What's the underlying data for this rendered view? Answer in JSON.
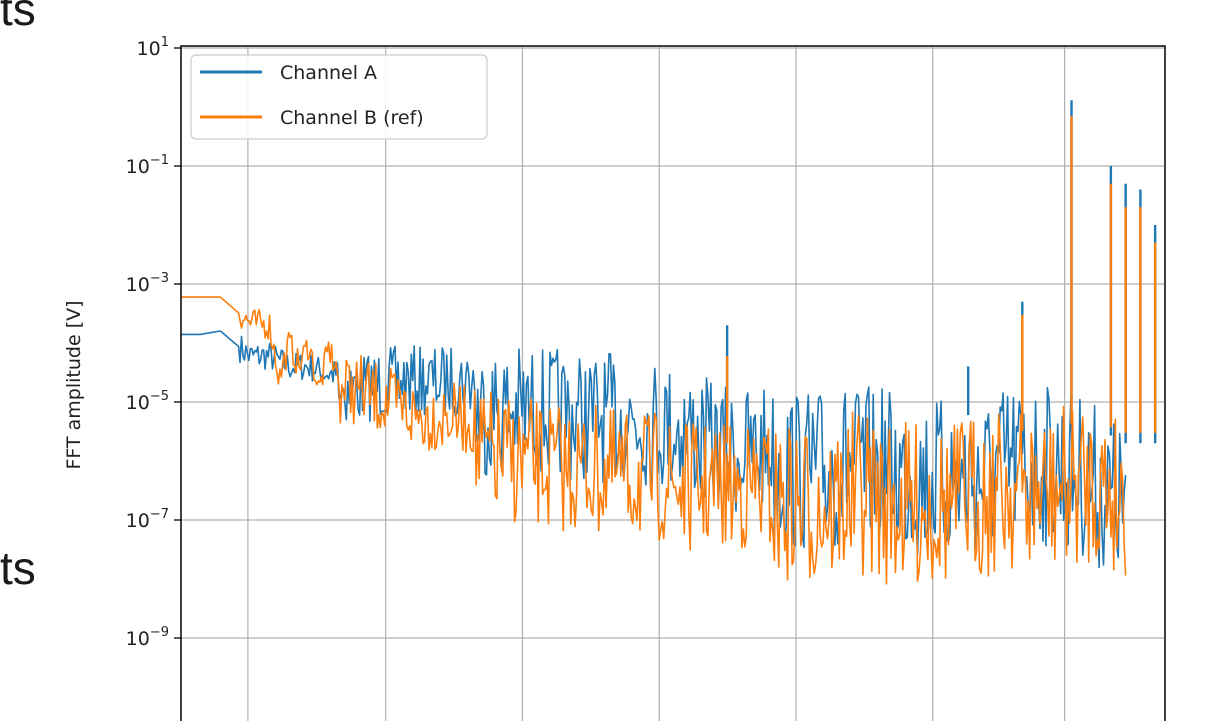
{
  "page": {
    "fragment_top": "ts",
    "fragment_mid": "ts"
  },
  "chart_data": {
    "type": "line",
    "title": "",
    "xlabel": "",
    "ylabel": "FFT amplitude [V]",
    "y_scale": "log",
    "ylim": [
      1e-10,
      10
    ],
    "yticks": [
      {
        "value": 10,
        "base": "10",
        "exp": "1"
      },
      {
        "value": 0.1,
        "base": "10",
        "exp": "−1"
      },
      {
        "value": 0.001,
        "base": "10",
        "exp": "−3"
      },
      {
        "value": 1e-05,
        "base": "10",
        "exp": "−5"
      },
      {
        "value": 1e-07,
        "base": "10",
        "exp": "−7"
      },
      {
        "value": 1e-09,
        "base": "10",
        "exp": "−9"
      }
    ],
    "grid": true,
    "legend": "top-left",
    "series": [
      {
        "name": "Channel A",
        "color": "#1f77b4",
        "x": [
          0,
          0.02,
          0.04,
          0.07,
          0.09,
          0.11,
          0.13,
          0.15,
          0.18,
          0.2,
          0.22,
          0.24,
          0.27,
          0.3,
          0.33,
          0.36,
          0.39,
          0.42,
          0.45,
          0.48,
          0.51,
          0.54,
          0.56,
          0.58,
          0.6,
          0.62,
          0.64,
          0.66,
          0.68,
          0.7,
          0.72,
          0.74,
          0.76,
          0.78,
          0.8,
          0.82,
          0.84,
          0.86,
          0.88,
          0.9,
          0.92,
          0.94,
          0.96
        ],
        "values": [
          0.00014,
          0.00014,
          0.00016,
          6e-05,
          6e-05,
          4e-05,
          4e-05,
          3e-05,
          3e-05,
          3.5e-05,
          4e-05,
          4e-05,
          4e-05,
          4e-05,
          4e-05,
          4e-05,
          3.5e-05,
          3e-05,
          3e-05,
          2.5e-05,
          2e-05,
          1e-05,
          8e-06,
          8e-06,
          1e-05,
          8e-06,
          7e-06,
          8e-06,
          1e-05,
          8e-06,
          8e-06,
          6e-06,
          6e-06,
          5e-06,
          6e-06,
          6e-06,
          1e-05,
          1e-05,
          1e-05,
          8e-06,
          6e-06,
          3e-06,
          2e-06
        ],
        "peaks": [
          {
            "x": 0.555,
            "value": 0.0002
          },
          {
            "x": 0.8,
            "value": 4e-05
          },
          {
            "x": 0.855,
            "value": 0.0005
          },
          {
            "x": 0.905,
            "value": 1.3
          },
          {
            "x": 0.945,
            "value": 0.1
          },
          {
            "x": 0.96,
            "value": 0.05
          },
          {
            "x": 0.975,
            "value": 0.04
          },
          {
            "x": 0.99,
            "value": 0.01
          }
        ]
      },
      {
        "name": "Channel B (ref)",
        "color": "#ff7f0e",
        "x": [
          0,
          0.02,
          0.04,
          0.07,
          0.09,
          0.1,
          0.11,
          0.12,
          0.13,
          0.14,
          0.15,
          0.16,
          0.18,
          0.2,
          0.22,
          0.24,
          0.27,
          0.3,
          0.33,
          0.36,
          0.39,
          0.42,
          0.45,
          0.48,
          0.51,
          0.54,
          0.56,
          0.58,
          0.6,
          0.62,
          0.64,
          0.66,
          0.68,
          0.7,
          0.72,
          0.74,
          0.76,
          0.78,
          0.8,
          0.82,
          0.84,
          0.86,
          0.88,
          0.9,
          0.92,
          0.94,
          0.96
        ],
        "values": [
          0.0006,
          0.0006,
          0.0006,
          0.00022,
          0.0002,
          2.5e-05,
          0.0001,
          4e-05,
          0.0001,
          1.5e-05,
          8e-05,
          3e-05,
          3e-05,
          2e-05,
          1.5e-05,
          1e-05,
          1e-05,
          8e-06,
          6e-06,
          5e-06,
          4e-06,
          4e-06,
          3e-06,
          3e-06,
          2e-06,
          2e-06,
          2e-06,
          2e-06,
          2e-06,
          2e-06,
          2e-06,
          2e-06,
          3e-06,
          3e-06,
          2e-06,
          2e-06,
          2e-06,
          2e-06,
          3e-06,
          3e-06,
          4e-06,
          3e-06,
          3e-06,
          4e-06,
          5e-06,
          4e-06,
          3e-06
        ],
        "peaks": [
          {
            "x": 0.555,
            "value": 6e-05
          },
          {
            "x": 0.855,
            "value": 0.0003
          },
          {
            "x": 0.905,
            "value": 0.7
          },
          {
            "x": 0.945,
            "value": 0.05
          },
          {
            "x": 0.96,
            "value": 0.02
          },
          {
            "x": 0.975,
            "value": 0.02
          },
          {
            "x": 0.99,
            "value": 0.005
          }
        ]
      }
    ]
  }
}
